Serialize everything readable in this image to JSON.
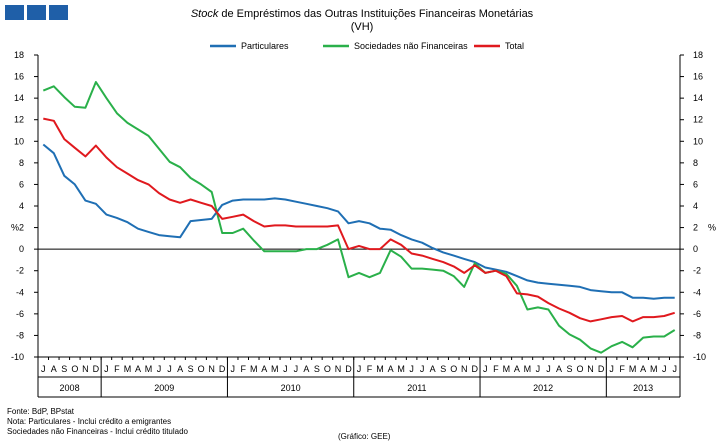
{
  "header": {
    "title_italic": "Stock",
    "title_rest": " de Empréstimos das Outras Instituições  Financeiras Monetárias",
    "subtitle": "(VH)"
  },
  "colors": {
    "logo": "#1f5fa8",
    "particulares": "#1f6fb4",
    "sociedades": "#2ab04a",
    "total": "#e0191e",
    "axis": "#000000"
  },
  "chart_data": {
    "type": "line",
    "ylabel_left": "%",
    "ylabel_right": "%",
    "ylim": [
      -10,
      18
    ],
    "yticks": [
      -10,
      -8,
      -6,
      -4,
      -2,
      0,
      2,
      4,
      6,
      8,
      10,
      12,
      14,
      16,
      18
    ],
    "grid": false,
    "legend_position": "top",
    "x_start": "2008-07",
    "x_end": "2013-07",
    "month_labels": [
      "J",
      "A",
      "S",
      "O",
      "N",
      "D",
      "J",
      "F",
      "M",
      "A",
      "M",
      "J",
      "J",
      "A",
      "S",
      "O",
      "N",
      "D",
      "J",
      "F",
      "M",
      "A",
      "M",
      "J",
      "J",
      "A",
      "S",
      "O",
      "N",
      "D",
      "J",
      "F",
      "M",
      "A",
      "M",
      "J",
      "J",
      "A",
      "S",
      "O",
      "N",
      "D",
      "J",
      "F",
      "M",
      "A",
      "M",
      "J",
      "J",
      "A",
      "S",
      "O",
      "N",
      "D",
      "J",
      "F",
      "M",
      "A",
      "M",
      "J",
      "J"
    ],
    "years": [
      {
        "label": "2008",
        "from": "2008-07",
        "to": "2008-12"
      },
      {
        "label": "2009",
        "from": "2009-01",
        "to": "2009-12"
      },
      {
        "label": "2010",
        "from": "2010-01",
        "to": "2010-12"
      },
      {
        "label": "2011",
        "from": "2011-01",
        "to": "2011-12"
      },
      {
        "label": "2012",
        "from": "2012-01",
        "to": "2012-12"
      },
      {
        "label": "2013",
        "from": "2013-01",
        "to": "2013-07"
      }
    ],
    "series": [
      {
        "name": "Particulares",
        "color": "#1f6fb4",
        "values": [
          9.7,
          8.9,
          6.8,
          6.0,
          4.5,
          4.2,
          3.2,
          2.9,
          2.5,
          1.9,
          1.6,
          1.3,
          1.2,
          1.1,
          2.6,
          2.7,
          2.8,
          4.1,
          4.5,
          4.6,
          4.6,
          4.6,
          4.7,
          4.6,
          4.4,
          4.2,
          4.0,
          3.8,
          3.5,
          2.4,
          2.6,
          2.4,
          1.9,
          1.8,
          1.3,
          0.9,
          0.6,
          0.1,
          -0.3,
          -0.6,
          -0.9,
          -1.2,
          -1.7,
          -1.9,
          -2.1,
          -2.5,
          -2.9,
          -3.1,
          -3.2,
          -3.3,
          -3.4,
          -3.5,
          -3.8,
          -3.9,
          -4.0,
          -4.0,
          -4.5,
          -4.5,
          -4.6,
          -4.5,
          -4.5
        ]
      },
      {
        "name": "Sociedades não Financeiras",
        "color": "#2ab04a",
        "values": [
          14.7,
          15.1,
          14.1,
          13.2,
          13.1,
          15.5,
          14.0,
          12.6,
          11.7,
          11.1,
          10.5,
          9.3,
          8.1,
          7.6,
          6.6,
          6.0,
          5.3,
          1.5,
          1.5,
          1.9,
          0.8,
          -0.2,
          -0.2,
          -0.2,
          -0.2,
          0.0,
          0.0,
          0.4,
          0.9,
          -2.6,
          -2.2,
          -2.6,
          -2.2,
          -0.1,
          -0.7,
          -1.8,
          -1.8,
          -1.9,
          -2.0,
          -2.5,
          -3.5,
          -1.3,
          -2.2,
          -2.0,
          -2.3,
          -3.4,
          -5.6,
          -5.4,
          -5.6,
          -7.1,
          -7.9,
          -8.4,
          -9.2,
          -9.6,
          -9.0,
          -8.6,
          -9.1,
          -8.2,
          -8.1,
          -8.1,
          -7.5
        ]
      },
      {
        "name": "Total",
        "color": "#e0191e",
        "values": [
          12.1,
          11.9,
          10.2,
          9.4,
          8.6,
          9.6,
          8.5,
          7.6,
          7.0,
          6.4,
          6.0,
          5.2,
          4.6,
          4.3,
          4.6,
          4.3,
          4.0,
          2.8,
          3.0,
          3.2,
          2.6,
          2.1,
          2.2,
          2.2,
          2.1,
          2.1,
          2.1,
          2.1,
          2.2,
          0.0,
          0.3,
          0.0,
          0.0,
          0.9,
          0.4,
          -0.4,
          -0.6,
          -0.9,
          -1.2,
          -1.6,
          -2.2,
          -1.5,
          -2.2,
          -2.0,
          -2.5,
          -4.1,
          -4.2,
          -4.4,
          -5.0,
          -5.5,
          -5.9,
          -6.4,
          -6.7,
          -6.5,
          -6.3,
          -6.2,
          -6.7,
          -6.3,
          -6.3,
          -6.2,
          -5.9
        ]
      }
    ]
  },
  "footer": {
    "source": "Fonte: BdP, BPstat",
    "note_1": "Nota: Particulares - Inclui crédito a emigrantes",
    "note_2": "Sociedades  não Financeiras - Inclui crédito titulado",
    "credit": "(Gráfico: GEE)"
  }
}
